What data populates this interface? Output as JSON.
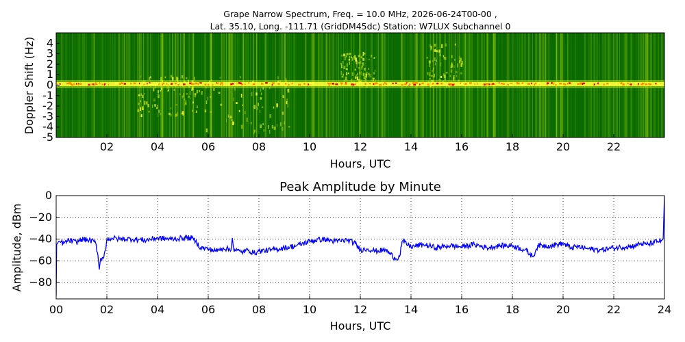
{
  "chart_data": [
    {
      "type": "heatmap",
      "title_line1": "Grape Narrow Spectrum, Freq. = 10.0 MHz, 2026-06-24T00-00 ,",
      "title_line2": "Lat.  35.10, Long. -111.71 (GridDM45dc) Station: W7LUX Subchannel 0",
      "xlabel": "Hours, UTC",
      "ylabel": "Doppler Shift (Hz)",
      "xlim": [
        0,
        24
      ],
      "ylim": [
        -5,
        5
      ],
      "x_ticks": [
        2,
        4,
        6,
        8,
        10,
        12,
        14,
        16,
        18,
        20,
        22
      ],
      "x_tick_labels": [
        "02",
        "04",
        "06",
        "08",
        "10",
        "12",
        "14",
        "16",
        "18",
        "20",
        "22"
      ],
      "y_ticks": [
        4,
        3,
        2,
        1,
        0,
        -1,
        -2,
        -3,
        -4,
        -5
      ],
      "y_tick_labels": [
        "4",
        "3",
        "2",
        "1",
        "0",
        "-1",
        "-2",
        "-3",
        "-4",
        "-5"
      ],
      "colormap": [
        "#006400",
        "#3c9a00",
        "#b4dc14",
        "#ffff3c",
        "#ff8c00",
        "#e60000"
      ],
      "carrier_doppler_hz": 0.1,
      "features": [
        {
          "name": "main-carrier",
          "x": [
            0,
            23.8
          ],
          "y": [
            0.1,
            0.1
          ],
          "intensity": 0.9
        },
        {
          "name": "spread-04-06",
          "x": [
            3.2,
            5.6
          ],
          "y": [
            -2.8,
            1.0
          ],
          "intensity": 0.6
        },
        {
          "name": "spread-06-09",
          "x": [
            5.6,
            9.2
          ],
          "y": [
            -4.5,
            1.0
          ],
          "intensity": 0.5
        },
        {
          "name": "rise-12",
          "x": [
            11.2,
            12.6
          ],
          "y": [
            0,
            3.2
          ],
          "intensity": 0.55
        },
        {
          "name": "rise-15",
          "x": [
            14.6,
            16.0
          ],
          "y": [
            0,
            4.0
          ],
          "intensity": 0.45
        }
      ]
    },
    {
      "type": "line",
      "title": "Peak Amplitude by Minute",
      "xlabel": "Hours, UTC",
      "ylabel": "Amplitude, dBm",
      "xlim": [
        0,
        24
      ],
      "ylim": [
        -95,
        0
      ],
      "grid": true,
      "line_color": "#0000ff",
      "x_ticks": [
        0,
        2,
        4,
        6,
        8,
        10,
        12,
        14,
        16,
        18,
        20,
        22,
        24
      ],
      "x_tick_labels": [
        "00",
        "02",
        "04",
        "06",
        "08",
        "10",
        "12",
        "14",
        "16",
        "18",
        "20",
        "22",
        "24"
      ],
      "y_ticks": [
        0,
        -20,
        -40,
        -60,
        -80
      ],
      "y_tick_labels": [
        "0",
        "−20",
        "−40",
        "−60",
        "−80"
      ],
      "series": [
        {
          "x": [
            0,
            0.02,
            0.1,
            0.3,
            0.5,
            0.8,
            1.0,
            1.3,
            1.55,
            1.65,
            1.7,
            1.75,
            1.85,
            1.95,
            2.0,
            2.2,
            2.5,
            3.0,
            3.5,
            4.0,
            4.5,
            5.0,
            5.35,
            5.5,
            5.7,
            6.0,
            6.3,
            6.6,
            6.9,
            6.95,
            7.0,
            7.3,
            7.6,
            7.8,
            8.0,
            8.5,
            9.0,
            9.5,
            10.0,
            10.5,
            11.0,
            11.5,
            11.8,
            12.0,
            12.3,
            12.6,
            13.0,
            13.2,
            13.4,
            13.55,
            13.65,
            14.0,
            14.5,
            15.0,
            15.5,
            16.0,
            16.5,
            17.0,
            17.5,
            18.0,
            18.5,
            18.8,
            18.9,
            19.0,
            19.5,
            20.0,
            20.3,
            20.6,
            21.0,
            21.5,
            22.0,
            22.5,
            22.9,
            23.0,
            23.3,
            23.6,
            23.9,
            23.95,
            24.0
          ],
          "y": [
            -92,
            -45,
            -42,
            -44,
            -41,
            -43,
            -40,
            -41,
            -43,
            -55,
            -68,
            -58,
            -57,
            -50,
            -40,
            -39,
            -40,
            -40,
            -41,
            -39,
            -40,
            -39,
            -39,
            -42,
            -48,
            -49,
            -51,
            -48,
            -50,
            -39,
            -49,
            -52,
            -50,
            -53,
            -51,
            -50,
            -48,
            -46,
            -42,
            -40,
            -42,
            -41,
            -44,
            -50,
            -49,
            -51,
            -50,
            -54,
            -58,
            -56,
            -42,
            -47,
            -45,
            -48,
            -46,
            -47,
            -45,
            -48,
            -46,
            -46,
            -50,
            -56,
            -52,
            -46,
            -46,
            -44,
            -48,
            -47,
            -49,
            -50,
            -48,
            -47,
            -46,
            -44,
            -45,
            -43,
            -41,
            -40,
            0
          ]
        }
      ]
    }
  ]
}
